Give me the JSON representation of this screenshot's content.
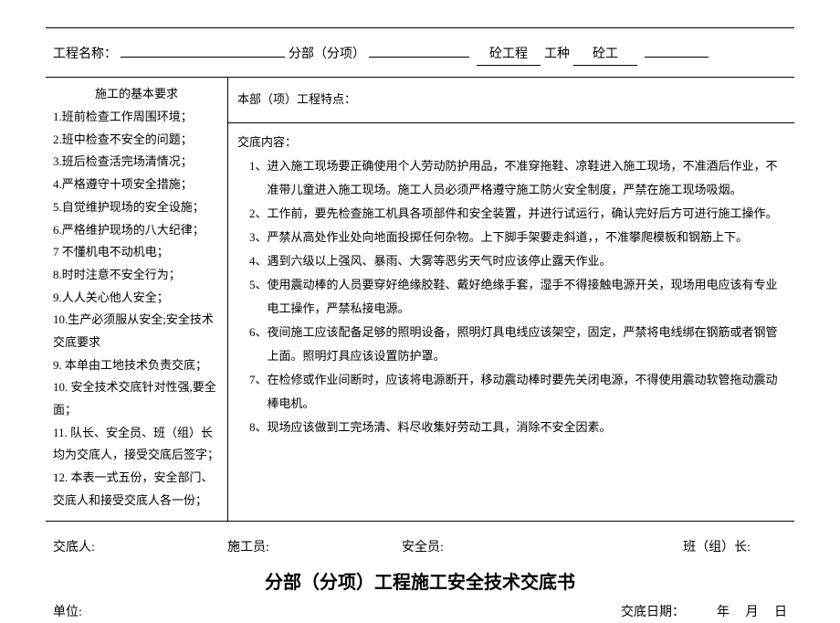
{
  "header": {
    "proj_label": "工程名称：",
    "sub_label": "分部（分项）",
    "field1_label": "砼工程",
    "type_label": "工种",
    "field2_label": "砼工"
  },
  "left": {
    "title": "施工的基本要求",
    "items": [
      "1.班前检查工作周围环境；",
      "2.班中检查不安全的问题；",
      "3.班后检查活完场清情况；",
      "4.严格遵守十项安全措施；",
      "5.自觉维护现场的安全设施；",
      "6.严格维护现场的八大纪律；",
      "7 不懂机电不动机电；",
      "8.时时注意不安全行为；",
      "9.人人关心他人安全；",
      "10.生产必须服从安全;安全技术交底要求",
      "9.  本单由工地技术负责交底；",
      "10.  安全技术交底针对性强,要全面；",
      "11.  队长、安全员、班（组）长均为交底人，接受交底后签字；",
      "12.  本表一式五份，安全部门、交底人和接受交底人各一份；"
    ]
  },
  "right_top": "本部（项）工程特点：",
  "right_body": {
    "head": "交底内容：",
    "items": [
      "1、进入施工现场要正确使用个人劳动防护用品，不准穿拖鞋、凉鞋进入施工现场，不准酒后作业，不准带儿童进入施工现场。施工人员必须严格遵守施工防火安全制度，严禁在施工现场吸烟。",
      "2、工作前，要先检查施工机具各项部件和安全装置，并进行试运行，确认完好后方可进行施工操作。",
      "3、严禁从高处作业处向地面投掷任何杂物。上下脚手架要走斜道，，不准攀爬模板和钢筋上下。",
      "4、遇到六级以上强风、暴雨、大雾等恶劣天气时应该停止露天作业。",
      "5、使用震动棒的人员要穿好绝缘胶鞋、戴好绝缘手套，湿手不得接触电源开关，现场用电应该有专业电工操作，严禁私接电源。",
      "6、夜间施工应该配备足够的照明设备，照明灯具电线应该架空，固定，严禁将电线绑在钢筋或者钢管上面。照明灯具应该设置防护罩。",
      "7、在检修或作业间断时，应该将电源断开，移动震动棒时要先关闭电源，不得使用震动软管拖动震动棒电机。",
      "8、现场应该做到工完场清、料尽收集好劳动工具，消除不安全因素。"
    ]
  },
  "signers": {
    "a": "交底人:",
    "b": "施工员:",
    "c": "安全员:",
    "d": "班（组）长:"
  },
  "title2": "分部（分项）工程施工安全技术交底书",
  "bottom": {
    "unit": "单位:",
    "date": "交底日期：          年     月     日"
  }
}
